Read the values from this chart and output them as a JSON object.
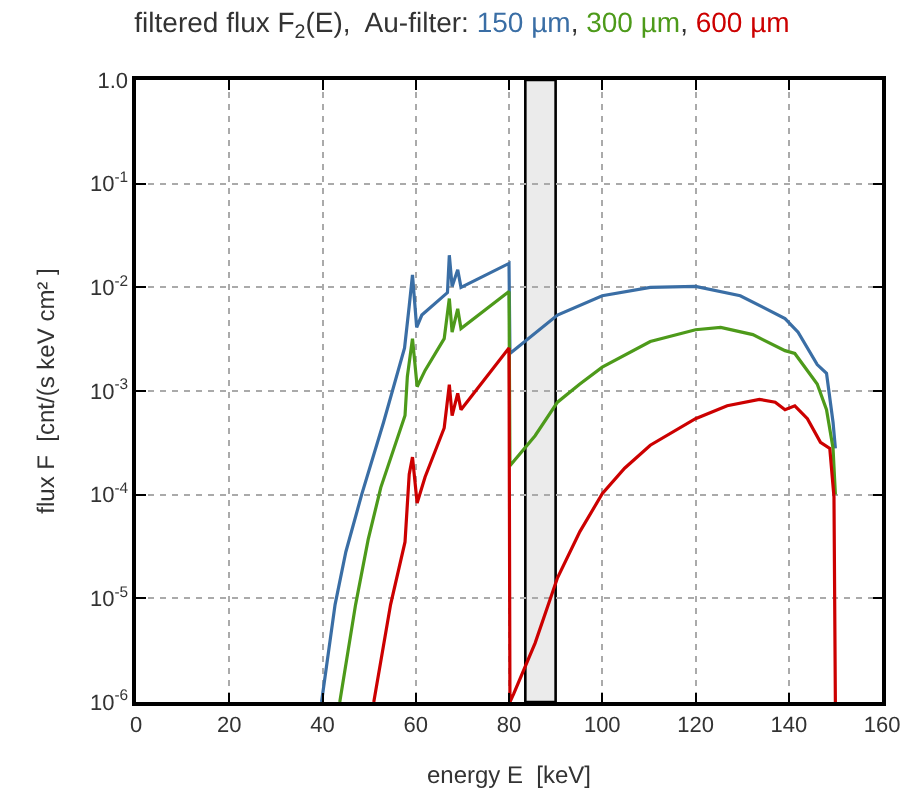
{
  "chart_data": {
    "type": "line",
    "title": "filtered flux F$_{2}$(E),  Au-filter:",
    "xlabel": "energy E  [keV]",
    "ylabel": "flux F  [cnt/(s keV cm² ]",
    "annotations": [
      ",",
      ","
    ],
    "log": "y",
    "grid": true,
    "legend": false,
    "marker": "none",
    "line_style": "solid",
    "xlim": [
      0,
      160
    ],
    "xticks": [
      0,
      20,
      40,
      60,
      80,
      100,
      120,
      140,
      160
    ],
    "ylim": [
      1e-06,
      1
    ],
    "yticks": [
      {
        "value": 1e-06,
        "label": "10$^{-6}$"
      },
      {
        "value": 1e-05,
        "label": "10$^{-5}$"
      },
      {
        "value": 0.0001,
        "label": "10$^{-4}$"
      },
      {
        "value": 0.001,
        "label": "10$^{-3}$"
      },
      {
        "value": 0.01,
        "label": "10$^{-2}$"
      },
      {
        "value": 0.1,
        "label": "10$^{-1}$"
      },
      {
        "value": 1,
        "label": "1.0"
      }
    ],
    "bands": [
      {
        "axis": "x",
        "from": 83.5,
        "to": 90,
        "color": "#ebebeb"
      }
    ],
    "series": [
      {
        "name": "150 µm",
        "color": "#3a6ea5",
        "x": [
          39.8,
          42.7,
          45,
          48.4,
          53.1,
          57.6,
          58.6,
          59.3,
          60.2,
          61.3,
          66.8,
          67.2,
          67.8,
          69,
          69.7,
          80,
          80.2,
          90.4,
          100,
          110.3,
          120,
          129.6,
          139.2,
          142,
          146.1,
          148.1,
          149.5,
          150
        ],
        "values": [
          1e-06,
          8.7e-06,
          2.8e-05,
          0.0001,
          0.0005,
          0.0026,
          0.0066,
          0.0132,
          0.0041,
          0.0054,
          0.0089,
          0.0204,
          0.0102,
          0.0148,
          0.01,
          0.017,
          0.0023,
          0.0054,
          0.0083,
          0.01,
          0.0102,
          0.0083,
          0.005,
          0.0037,
          0.0018,
          0.00148,
          0.0005,
          0.00028
        ]
      },
      {
        "name": "300 µm",
        "color": "#4d9a1a",
        "x": [
          43.7,
          47.1,
          49.8,
          52.5,
          57.7,
          58.2,
          59.3,
          60.3,
          62,
          66.1,
          67.2,
          67.8,
          69,
          69.7,
          80,
          80.2,
          85.6,
          90.4,
          95.2,
          100,
          110.3,
          120,
          125.4,
          132.3,
          139.2,
          141.3,
          146.1,
          148.1,
          149.5,
          150
        ],
        "values": [
          1e-06,
          8.7e-06,
          3.7e-05,
          0.000117,
          0.00058,
          0.00138,
          0.0032,
          0.0011,
          0.00158,
          0.0032,
          0.0078,
          0.0037,
          0.0062,
          0.004,
          0.0091,
          0.00019,
          0.00037,
          0.00078,
          0.00117,
          0.0017,
          0.003,
          0.0039,
          0.0041,
          0.0035,
          0.00245,
          0.0023,
          0.00117,
          0.00066,
          0.00028,
          0.0001
        ]
      },
      {
        "name": "600 µm",
        "color": "#cc0000",
        "x": [
          51,
          54.6,
          57.7,
          58.6,
          59.3,
          60.3,
          62,
          66.1,
          67.2,
          67.8,
          69,
          69.7,
          80,
          80.2,
          81,
          85.6,
          90.4,
          95.2,
          100,
          104.8,
          110.3,
          120,
          126.8,
          133.7,
          137.1,
          139.2,
          141.3,
          144,
          146.8,
          148.8,
          149.7,
          150
        ],
        "values": [
          1e-06,
          8.7e-06,
          3.5e-05,
          0.000158,
          0.00023,
          8.3e-05,
          0.000148,
          0.00044,
          0.00115,
          0.00058,
          0.00095,
          0.00066,
          0.0026,
          1e-06,
          1.2e-06,
          3.7e-06,
          1.58e-05,
          4.4e-05,
          0.000102,
          0.00018,
          0.0003,
          0.00054,
          0.00072,
          0.00083,
          0.00078,
          0.00066,
          0.00072,
          0.00054,
          0.00032,
          0.00028,
          9.5e-05,
          1e-06
        ]
      }
    ]
  }
}
